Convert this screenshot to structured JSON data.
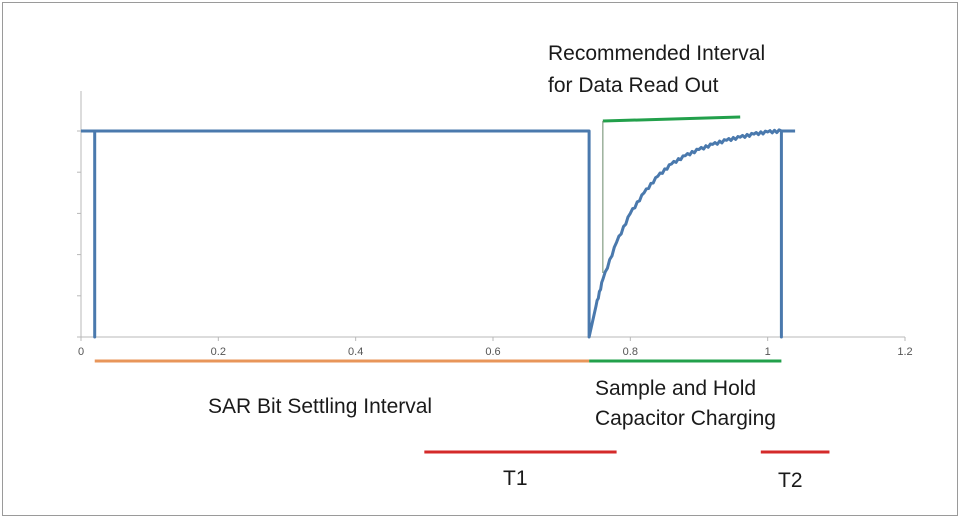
{
  "chart_data": {
    "type": "line",
    "title": "",
    "xlabel": "",
    "ylabel": "",
    "xlim": [
      0,
      1.2
    ],
    "ylim": [
      0,
      1
    ],
    "x_ticks": [
      0,
      0.2,
      0.4,
      0.6,
      0.8,
      1,
      1.2
    ],
    "x_tick_labels": [
      "0",
      "0.2",
      "0.4",
      "0.6",
      "0.8",
      "1",
      "1.2"
    ],
    "y_ticks": [
      0,
      0.2,
      0.4,
      0.6,
      0.8,
      1
    ],
    "grid": false,
    "series": [
      {
        "color": "#4a79ad",
        "points": [
          [
            0.0,
            1.0
          ],
          [
            0.02,
            1.0
          ],
          [
            0.02,
            0.0
          ],
          [
            0.02,
            1.0
          ],
          [
            0.74,
            1.0
          ],
          [
            0.74,
            0.0
          ],
          [
            0.75,
            0.15
          ],
          [
            0.76,
            0.28
          ],
          [
            0.78,
            0.46
          ],
          [
            0.8,
            0.6
          ],
          [
            0.82,
            0.7
          ],
          [
            0.84,
            0.78
          ],
          [
            0.86,
            0.84
          ],
          [
            0.88,
            0.88
          ],
          [
            0.9,
            0.91
          ],
          [
            0.92,
            0.935
          ],
          [
            0.94,
            0.955
          ],
          [
            0.96,
            0.97
          ],
          [
            0.98,
            0.985
          ],
          [
            1.0,
            0.995
          ],
          [
            1.02,
            1.0
          ],
          [
            1.02,
            0.0
          ],
          [
            1.02,
            1.0
          ],
          [
            1.04,
            1.0
          ]
        ]
      }
    ],
    "annotations": [
      {
        "text_lines": [
          "Recommended Interval",
          "for Data Read Out"
        ],
        "color": "#1a1a1a"
      },
      {
        "text_lines": [
          "SAR Bit Settling Interval"
        ],
        "color": "#1a1a1a"
      },
      {
        "text_lines": [
          "Sample and Hold",
          "Capacitor Charging"
        ],
        "color": "#1a1a1a"
      },
      {
        "text_lines": [
          "T1"
        ],
        "color": "#1a1a1a"
      },
      {
        "text_lines": [
          "T2"
        ],
        "color": "#1a1a1a"
      }
    ],
    "interval_bars": [
      {
        "name": "sar-bit-settling-bar",
        "x": [
          0.02,
          0.74
        ],
        "color": "#e8965a"
      },
      {
        "name": "sample-hold-bar",
        "x": [
          0.74,
          1.02
        ],
        "color": "#22a04b"
      },
      {
        "name": "readout-interval-bar",
        "x": [
          0.76,
          0.96
        ],
        "color": "#22a04b"
      },
      {
        "name": "t1-bar",
        "x": [
          0.5,
          0.78
        ],
        "color": "#d42a2a"
      },
      {
        "name": "t2-bar",
        "x": [
          0.99,
          1.09
        ],
        "color": "#d42a2a"
      }
    ]
  }
}
